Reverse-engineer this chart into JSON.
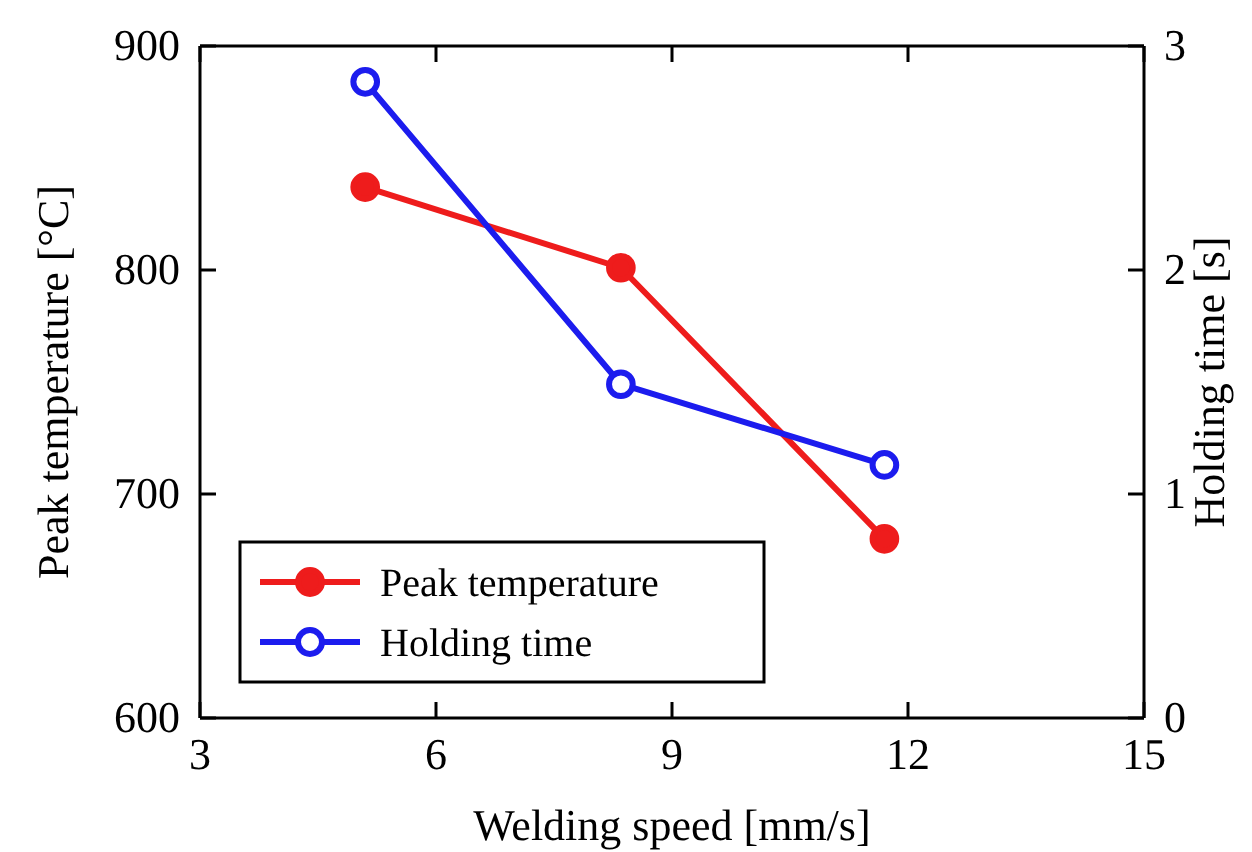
{
  "chart_data": {
    "type": "line",
    "xlabel": "Welding speed [mm/s]",
    "ylabel": "Peak temperature [°C]",
    "y2label": "Holding time [s]",
    "xlim": [
      3,
      15
    ],
    "xticks": [
      3,
      6,
      9,
      12,
      15
    ],
    "ylim": [
      600,
      900
    ],
    "yticks": [
      600,
      700,
      800,
      900
    ],
    "y2lim": [
      0,
      3
    ],
    "y2ticks": [
      0,
      1,
      2,
      3
    ],
    "legend": "bottom left",
    "grid": false,
    "series": [
      {
        "name": "Peak temperature",
        "color": "#ee1c1c",
        "x": [
          5.1,
          8.35,
          11.7
        ],
        "values": [
          837,
          801,
          680
        ],
        "marker": "circle"
      },
      {
        "name": "Holding time",
        "color": "#1c1cee",
        "x": [
          5.1,
          8.35,
          11.7
        ],
        "values": [
          2.84,
          1.49,
          1.13
        ],
        "marker": "circle",
        "axis": "y2"
      }
    ]
  }
}
